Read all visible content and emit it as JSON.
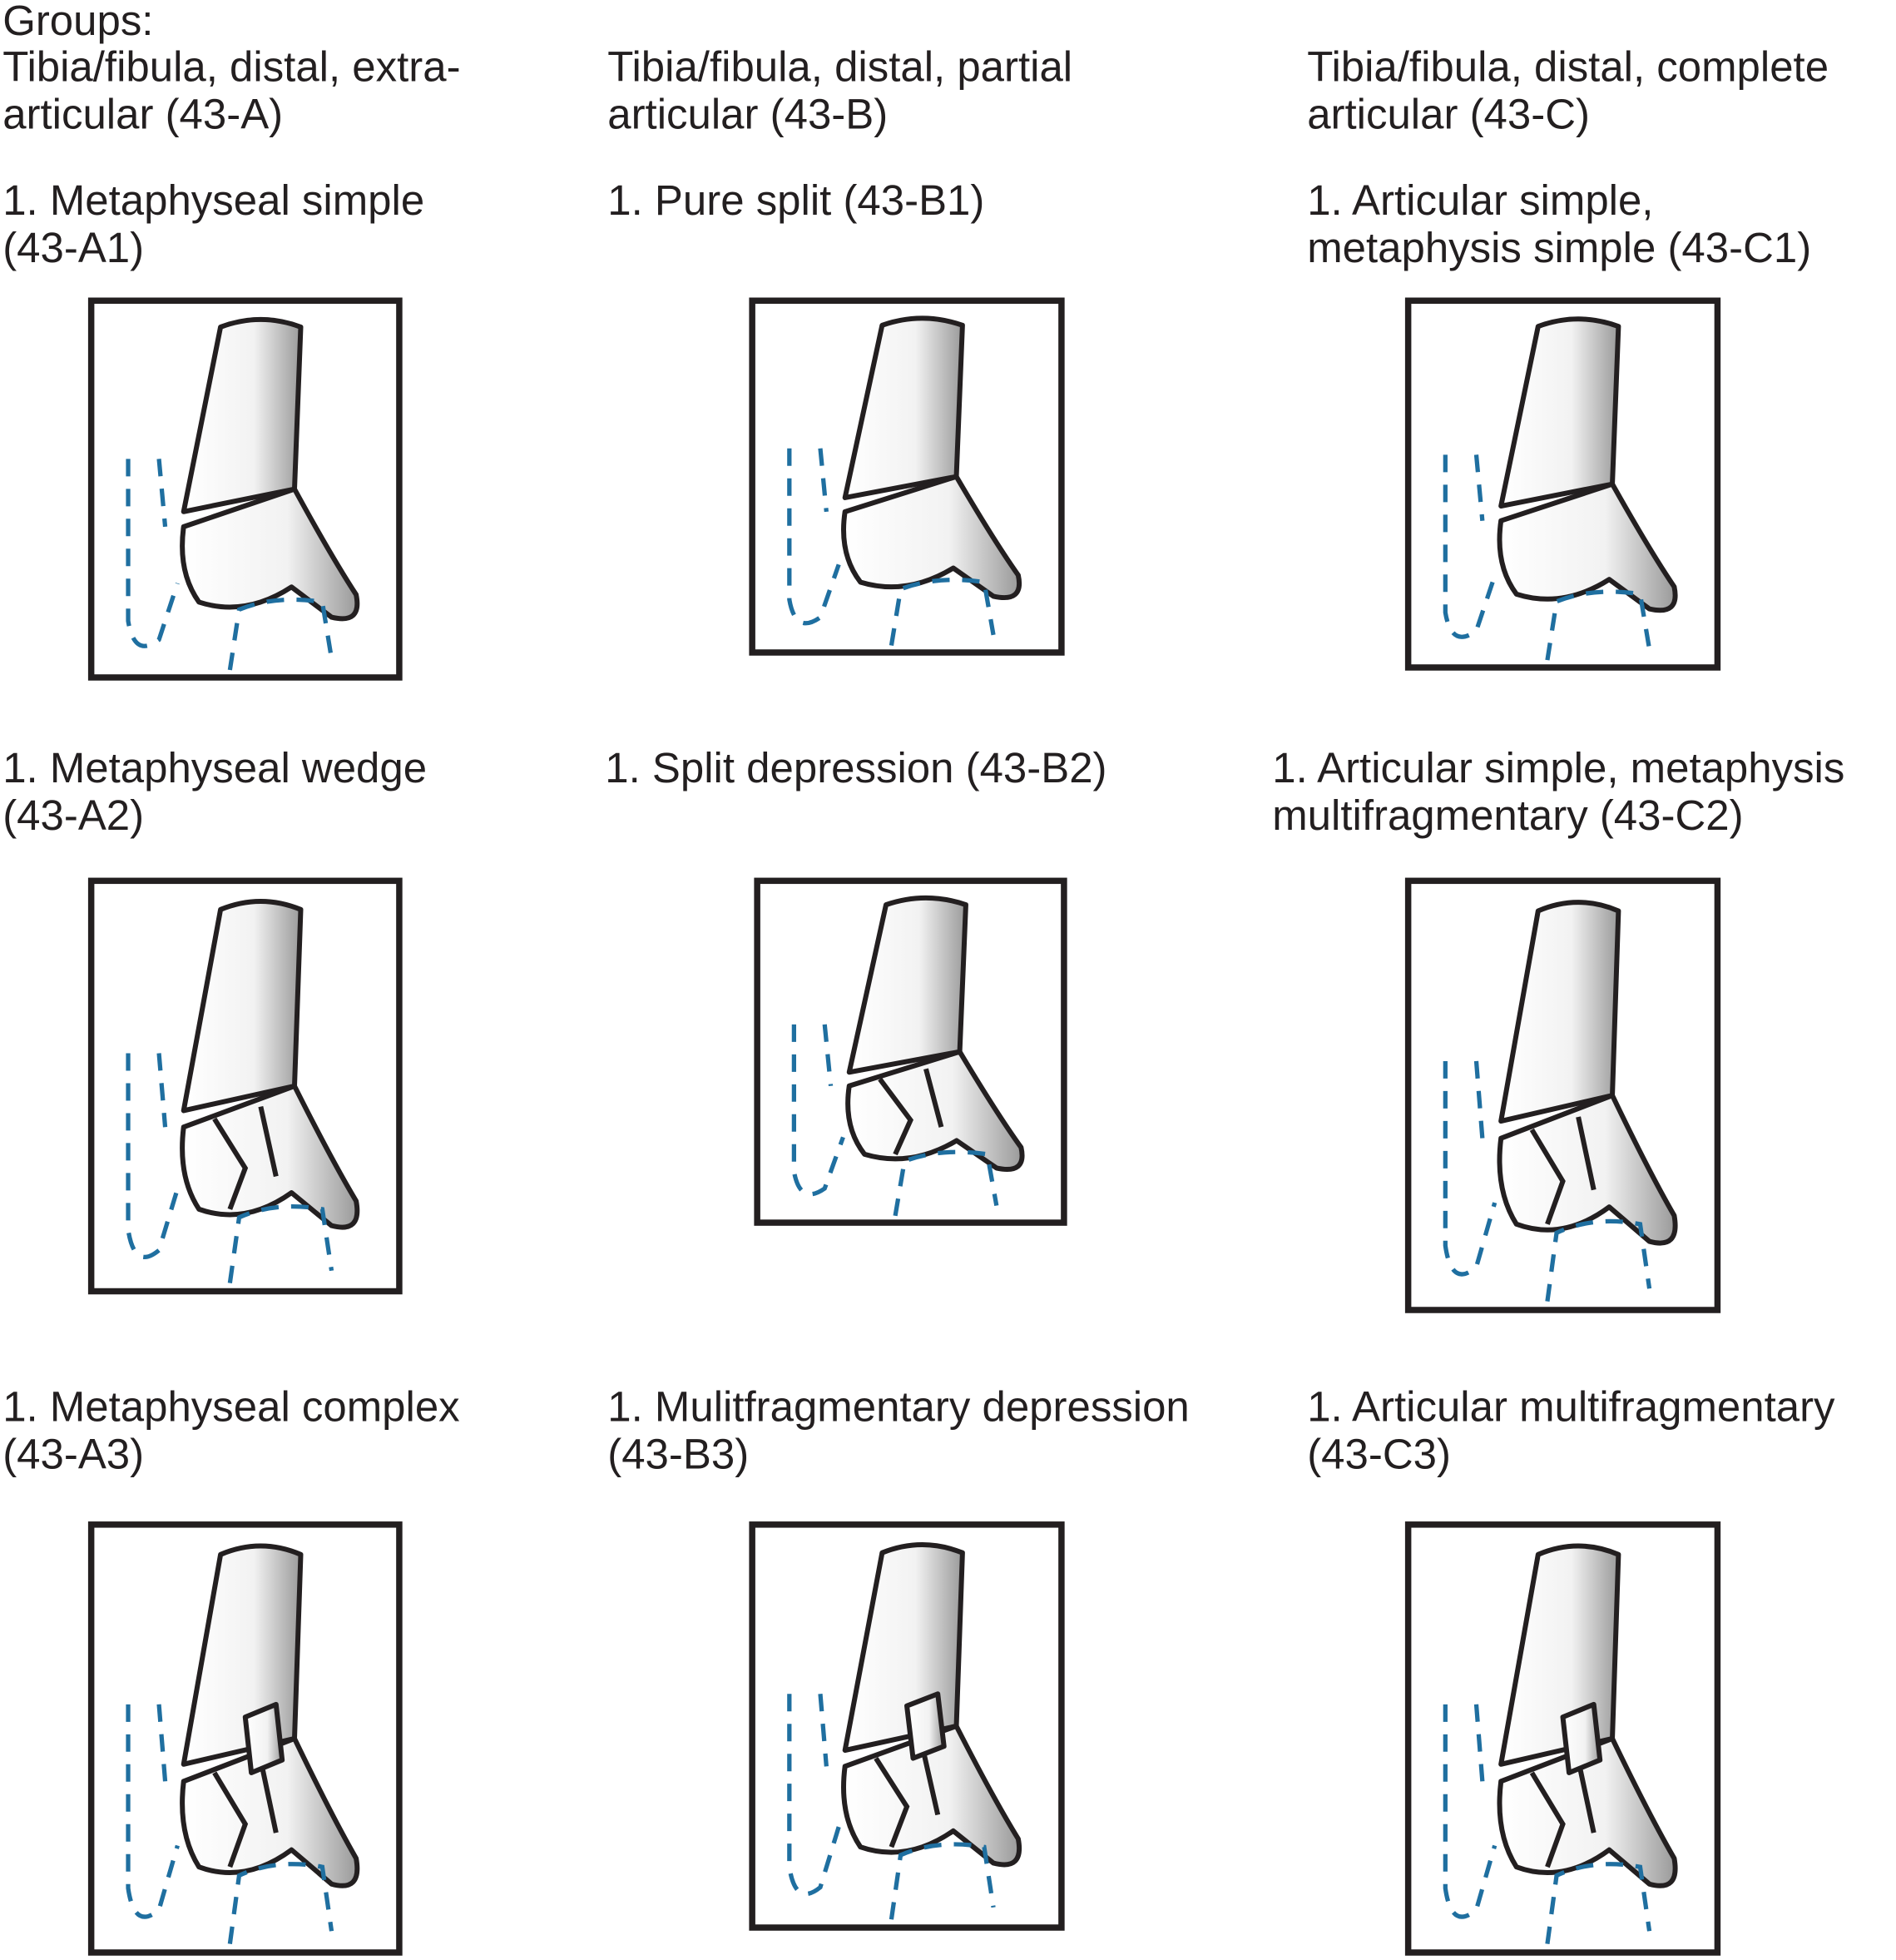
{
  "header": {
    "title": "Groups:"
  },
  "groups": [
    {
      "title": [
        "Tibia/fibula, distal, extra-",
        "articular (43-A)"
      ],
      "items": [
        {
          "label": [
            "1. Metaphyseal simple",
            "(43-A1)"
          ]
        },
        {
          "label": [
            "1. Metaphyseal wedge",
            "(43-A2)"
          ]
        },
        {
          "label": [
            "1. Metaphyseal complex",
            "(43-A3)"
          ]
        }
      ]
    },
    {
      "title": [
        "Tibia/fibula, distal, partial",
        "articular (43-B)"
      ],
      "items": [
        {
          "label": [
            "1. Pure split (43-B1)"
          ]
        },
        {
          "label": [
            "1. Split depression (43-B2)"
          ]
        },
        {
          "label": [
            "1. Mulitfragmentary depression",
            "(43-B3)"
          ]
        }
      ]
    },
    {
      "title": [
        "Tibia/fibula, distal, complete",
        "articular (43-C)"
      ],
      "items": [
        {
          "label": [
            "1. Articular simple,",
            "metaphysis simple (43-C1)"
          ]
        },
        {
          "label": [
            "1. Articular simple, metaphysis",
            "multifragmentary (43-C2)"
          ]
        },
        {
          "label": [
            "1. Articular multifragmentary",
            "(43-C3)"
          ]
        }
      ]
    }
  ]
}
